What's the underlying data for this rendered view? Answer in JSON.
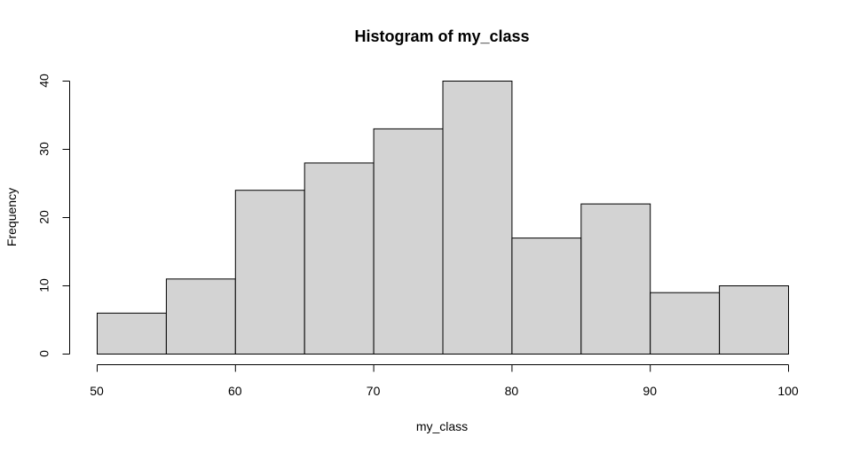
{
  "chart_data": {
    "type": "bar",
    "title": "Histogram of my_class",
    "xlabel": "my_class",
    "ylabel": "Frequency",
    "bins": [
      {
        "start": 50,
        "end": 55,
        "count": 6
      },
      {
        "start": 55,
        "end": 60,
        "count": 11
      },
      {
        "start": 60,
        "end": 65,
        "count": 24
      },
      {
        "start": 65,
        "end": 70,
        "count": 28
      },
      {
        "start": 70,
        "end": 75,
        "count": 33
      },
      {
        "start": 75,
        "end": 80,
        "count": 40
      },
      {
        "start": 80,
        "end": 85,
        "count": 17
      },
      {
        "start": 85,
        "end": 90,
        "count": 22
      },
      {
        "start": 90,
        "end": 95,
        "count": 9
      },
      {
        "start": 95,
        "end": 100,
        "count": 10
      }
    ],
    "xlim": [
      50,
      100
    ],
    "ylim": [
      0,
      40
    ],
    "x_ticks": [
      "50",
      "60",
      "70",
      "80",
      "90",
      "100"
    ],
    "y_ticks": [
      "0",
      "10",
      "20",
      "30",
      "40"
    ],
    "bar_color": "#d3d3d3",
    "grid": false,
    "legend": "none"
  }
}
